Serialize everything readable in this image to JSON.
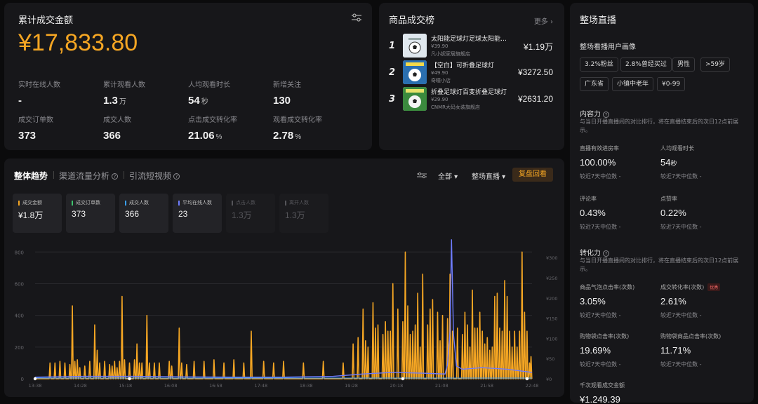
{
  "summary": {
    "title": "累计成交金额",
    "amount": "¥17,833.80",
    "metrics": [
      {
        "label": "实时在线人数",
        "value": "-",
        "unit": ""
      },
      {
        "label": "累计观看人数",
        "value": "1.3",
        "unit": "万"
      },
      {
        "label": "人均观看时长",
        "value": "54",
        "unit": "秒"
      },
      {
        "label": "新增关注",
        "value": "130",
        "unit": ""
      },
      {
        "label": "成交订单数",
        "value": "373",
        "unit": ""
      },
      {
        "label": "成交人数",
        "value": "366",
        "unit": ""
      },
      {
        "label": "点击成交转化率",
        "value": "21.06",
        "unit": "%"
      },
      {
        "label": "观看成交转化率",
        "value": "2.78",
        "unit": "%"
      }
    ]
  },
  "ranking": {
    "title": "商品成交榜",
    "more": "更多 ›",
    "items": [
      {
        "rank": "1",
        "name": "太阳能足球灯足球太阳能灯...",
        "price": "¥39.90",
        "shop": "凡小妮家居旗舰店",
        "amount": "¥1.19万"
      },
      {
        "rank": "2",
        "name": "【空白】可折叠足球灯",
        "price": "¥49.90",
        "shop": "奇瞳小店",
        "amount": "¥3272.50"
      },
      {
        "rank": "3",
        "name": "折叠足球灯百变折叠足球灯",
        "price": "¥29.90",
        "shop": "CNMR大码女装旗舰店",
        "amount": "¥2631.20"
      }
    ]
  },
  "trend": {
    "tabs": [
      {
        "label": "整体趋势",
        "help": false
      },
      {
        "label": "渠道流量分析",
        "help": true
      },
      {
        "label": "引流短视频",
        "help": true
      }
    ],
    "dropdown_all": "全部 ▾",
    "dropdown_scope": "整场直播 ▾",
    "replay_button": "复盘回看",
    "cards": [
      {
        "label": "成交金额",
        "value": "¥1.8万",
        "color": "#f5a623",
        "active": true
      },
      {
        "label": "成交订单数",
        "value": "373",
        "color": "#3ec46d",
        "active": true
      },
      {
        "label": "成交人数",
        "value": "366",
        "color": "#3aa0ff",
        "active": true
      },
      {
        "label": "平均在线人数",
        "value": "23",
        "color": "#6f7dff",
        "active": true
      },
      {
        "label": "点击人数",
        "value": "1.3万",
        "color": "#55555a",
        "active": false
      },
      {
        "label": "离开人数",
        "value": "1.3万",
        "color": "#55555a",
        "active": false
      }
    ]
  },
  "chart_data": {
    "type": "line",
    "x_ticks": [
      "13:38",
      "14:28",
      "15:18",
      "16:08",
      "16:58",
      "17:48",
      "18:38",
      "19:28",
      "20:18",
      "21:08",
      "21:58",
      "22:48"
    ],
    "y_left": {
      "ticks": [
        0,
        200,
        400,
        600,
        800
      ],
      "range": [
        0,
        850
      ]
    },
    "y_right": {
      "ticks": [
        "¥0",
        "¥50",
        "¥100",
        "¥150",
        "¥200",
        "¥250",
        "¥300"
      ],
      "range": [
        0,
        300
      ]
    },
    "series": [
      {
        "name": "成交金额",
        "color": "#f5a623",
        "axis": "left",
        "peaks": [
          [
            0.03,
            100
          ],
          [
            0.04,
            100
          ],
          [
            0.05,
            110
          ],
          [
            0.06,
            100
          ],
          [
            0.07,
            90
          ],
          [
            0.075,
            460
          ],
          [
            0.08,
            110
          ],
          [
            0.085,
            120
          ],
          [
            0.09,
            70
          ],
          [
            0.1,
            80
          ],
          [
            0.11,
            110
          ],
          [
            0.12,
            340
          ],
          [
            0.125,
            180
          ],
          [
            0.13,
            100
          ],
          [
            0.14,
            110
          ],
          [
            0.15,
            90
          ],
          [
            0.155,
            80
          ],
          [
            0.16,
            110
          ],
          [
            0.165,
            70
          ],
          [
            0.17,
            110
          ],
          [
            0.175,
            520
          ],
          [
            0.18,
            120
          ],
          [
            0.19,
            100
          ],
          [
            0.2,
            120
          ],
          [
            0.205,
            220
          ],
          [
            0.21,
            100
          ],
          [
            0.215,
            100
          ],
          [
            0.225,
            400
          ],
          [
            0.23,
            100
          ],
          [
            0.24,
            100
          ],
          [
            0.25,
            100
          ],
          [
            0.27,
            110
          ],
          [
            0.275,
            80
          ],
          [
            0.29,
            320
          ],
          [
            0.295,
            100
          ],
          [
            0.305,
            90
          ],
          [
            0.32,
            110
          ],
          [
            0.34,
            110
          ],
          [
            0.36,
            120
          ],
          [
            0.38,
            100
          ],
          [
            0.4,
            120
          ],
          [
            0.42,
            100
          ],
          [
            0.435,
            300
          ],
          [
            0.46,
            110
          ],
          [
            0.48,
            100
          ],
          [
            0.5,
            110
          ],
          [
            0.54,
            100
          ],
          [
            0.58,
            110
          ],
          [
            0.62,
            100
          ],
          [
            0.64,
            220
          ],
          [
            0.65,
            260
          ],
          [
            0.66,
            440
          ],
          [
            0.665,
            240
          ],
          [
            0.67,
            200
          ],
          [
            0.68,
            480
          ],
          [
            0.685,
            320
          ],
          [
            0.69,
            340
          ],
          [
            0.7,
            280
          ],
          [
            0.705,
            360
          ],
          [
            0.71,
            300
          ],
          [
            0.715,
            300
          ],
          [
            0.72,
            600
          ],
          [
            0.73,
            440
          ],
          [
            0.74,
            360
          ],
          [
            0.745,
            800
          ],
          [
            0.75,
            460
          ],
          [
            0.755,
            280
          ],
          [
            0.76,
            300
          ],
          [
            0.765,
            340
          ],
          [
            0.77,
            540
          ],
          [
            0.775,
            200
          ],
          [
            0.78,
            660
          ],
          [
            0.79,
            340
          ],
          [
            0.795,
            440
          ],
          [
            0.8,
            500
          ],
          [
            0.81,
            420
          ],
          [
            0.815,
            240
          ],
          [
            0.82,
            400
          ],
          [
            0.83,
            380
          ],
          [
            0.835,
            660
          ],
          [
            0.84,
            300
          ],
          [
            0.85,
            320
          ],
          [
            0.86,
            280
          ],
          [
            0.865,
            420
          ],
          [
            0.87,
            340
          ],
          [
            0.875,
            200
          ],
          [
            0.88,
            560
          ],
          [
            0.885,
            320
          ],
          [
            0.89,
            320
          ],
          [
            0.895,
            420
          ],
          [
            0.9,
            300
          ],
          [
            0.905,
            220
          ],
          [
            0.91,
            260
          ],
          [
            0.915,
            180
          ],
          [
            0.92,
            200
          ],
          [
            0.925,
            520
          ],
          [
            0.93,
            540
          ],
          [
            0.935,
            320
          ],
          [
            0.94,
            300
          ],
          [
            0.945,
            620
          ],
          [
            0.95,
            520
          ],
          [
            0.955,
            300
          ],
          [
            0.96,
            200
          ],
          [
            0.965,
            300
          ],
          [
            0.97,
            200
          ],
          [
            0.975,
            300
          ],
          [
            0.98,
            800
          ],
          [
            0.985,
            420
          ],
          [
            0.99,
            300
          ],
          [
            0.995,
            100
          ],
          [
            0.998,
            140
          ]
        ]
      },
      {
        "name": "平均在线人数",
        "color": "#6f7dff",
        "axis": "left",
        "points": [
          [
            0,
            10
          ],
          [
            0.1,
            15
          ],
          [
            0.2,
            15
          ],
          [
            0.3,
            12
          ],
          [
            0.4,
            10
          ],
          [
            0.5,
            10
          ],
          [
            0.6,
            15
          ],
          [
            0.66,
            30
          ],
          [
            0.72,
            40
          ],
          [
            0.78,
            35
          ],
          [
            0.825,
            30
          ],
          [
            0.83,
            90
          ],
          [
            0.835,
            300
          ],
          [
            0.838,
            880
          ],
          [
            0.842,
            280
          ],
          [
            0.848,
            80
          ],
          [
            0.86,
            60
          ],
          [
            0.9,
            70
          ],
          [
            0.95,
            60
          ],
          [
            1.0,
            40
          ]
        ]
      }
    ]
  },
  "live": {
    "title": "整场直播",
    "persona_title": "整场看播用户画像",
    "tags": [
      "3.2%粉丝",
      "2.8%曾经买过",
      "男性",
      ">59岁",
      "广东省",
      "小镇中老年",
      "¥0-99"
    ],
    "capacity": {
      "title": "内容力",
      "desc": "与当日开播直播间的对比排行，将在直播结束后的次日12点前展示。",
      "metrics": [
        {
          "label": "直播有效进房率",
          "value": "100.00%",
          "compare": "较近7天中位数 -"
        },
        {
          "label": "人均观看时长",
          "value": "54",
          "unit": "秒",
          "compare": "较近7天中位数 -"
        },
        {
          "label": "评论率",
          "value": "0.43%",
          "compare": "较近7天中位数 -"
        },
        {
          "label": "点赞率",
          "value": "0.22%",
          "compare": "较近7天中位数 -"
        }
      ]
    },
    "conversion": {
      "title": "转化力",
      "desc": "与当日开播直播间的对比排行，将在直播结束后的次日12点前展示。",
      "badge": "优秀",
      "metrics": [
        {
          "label": "商品气泡点击率(次数)",
          "value": "3.05%",
          "compare": "较近7天中位数 -"
        },
        {
          "label": "成交转化率(次数)",
          "value": "2.61%",
          "compare": "较近7天中位数 -"
        },
        {
          "label": "购物袋点击率(次数)",
          "value": "19.69%",
          "compare": "较近7天中位数 -"
        },
        {
          "label": "购物袋商品点击率(次数)",
          "value": "11.71%",
          "compare": "较近7天中位数 -"
        }
      ]
    },
    "gmv_label": "千次观看成交金额",
    "gmv_value": "¥1,249.39"
  }
}
